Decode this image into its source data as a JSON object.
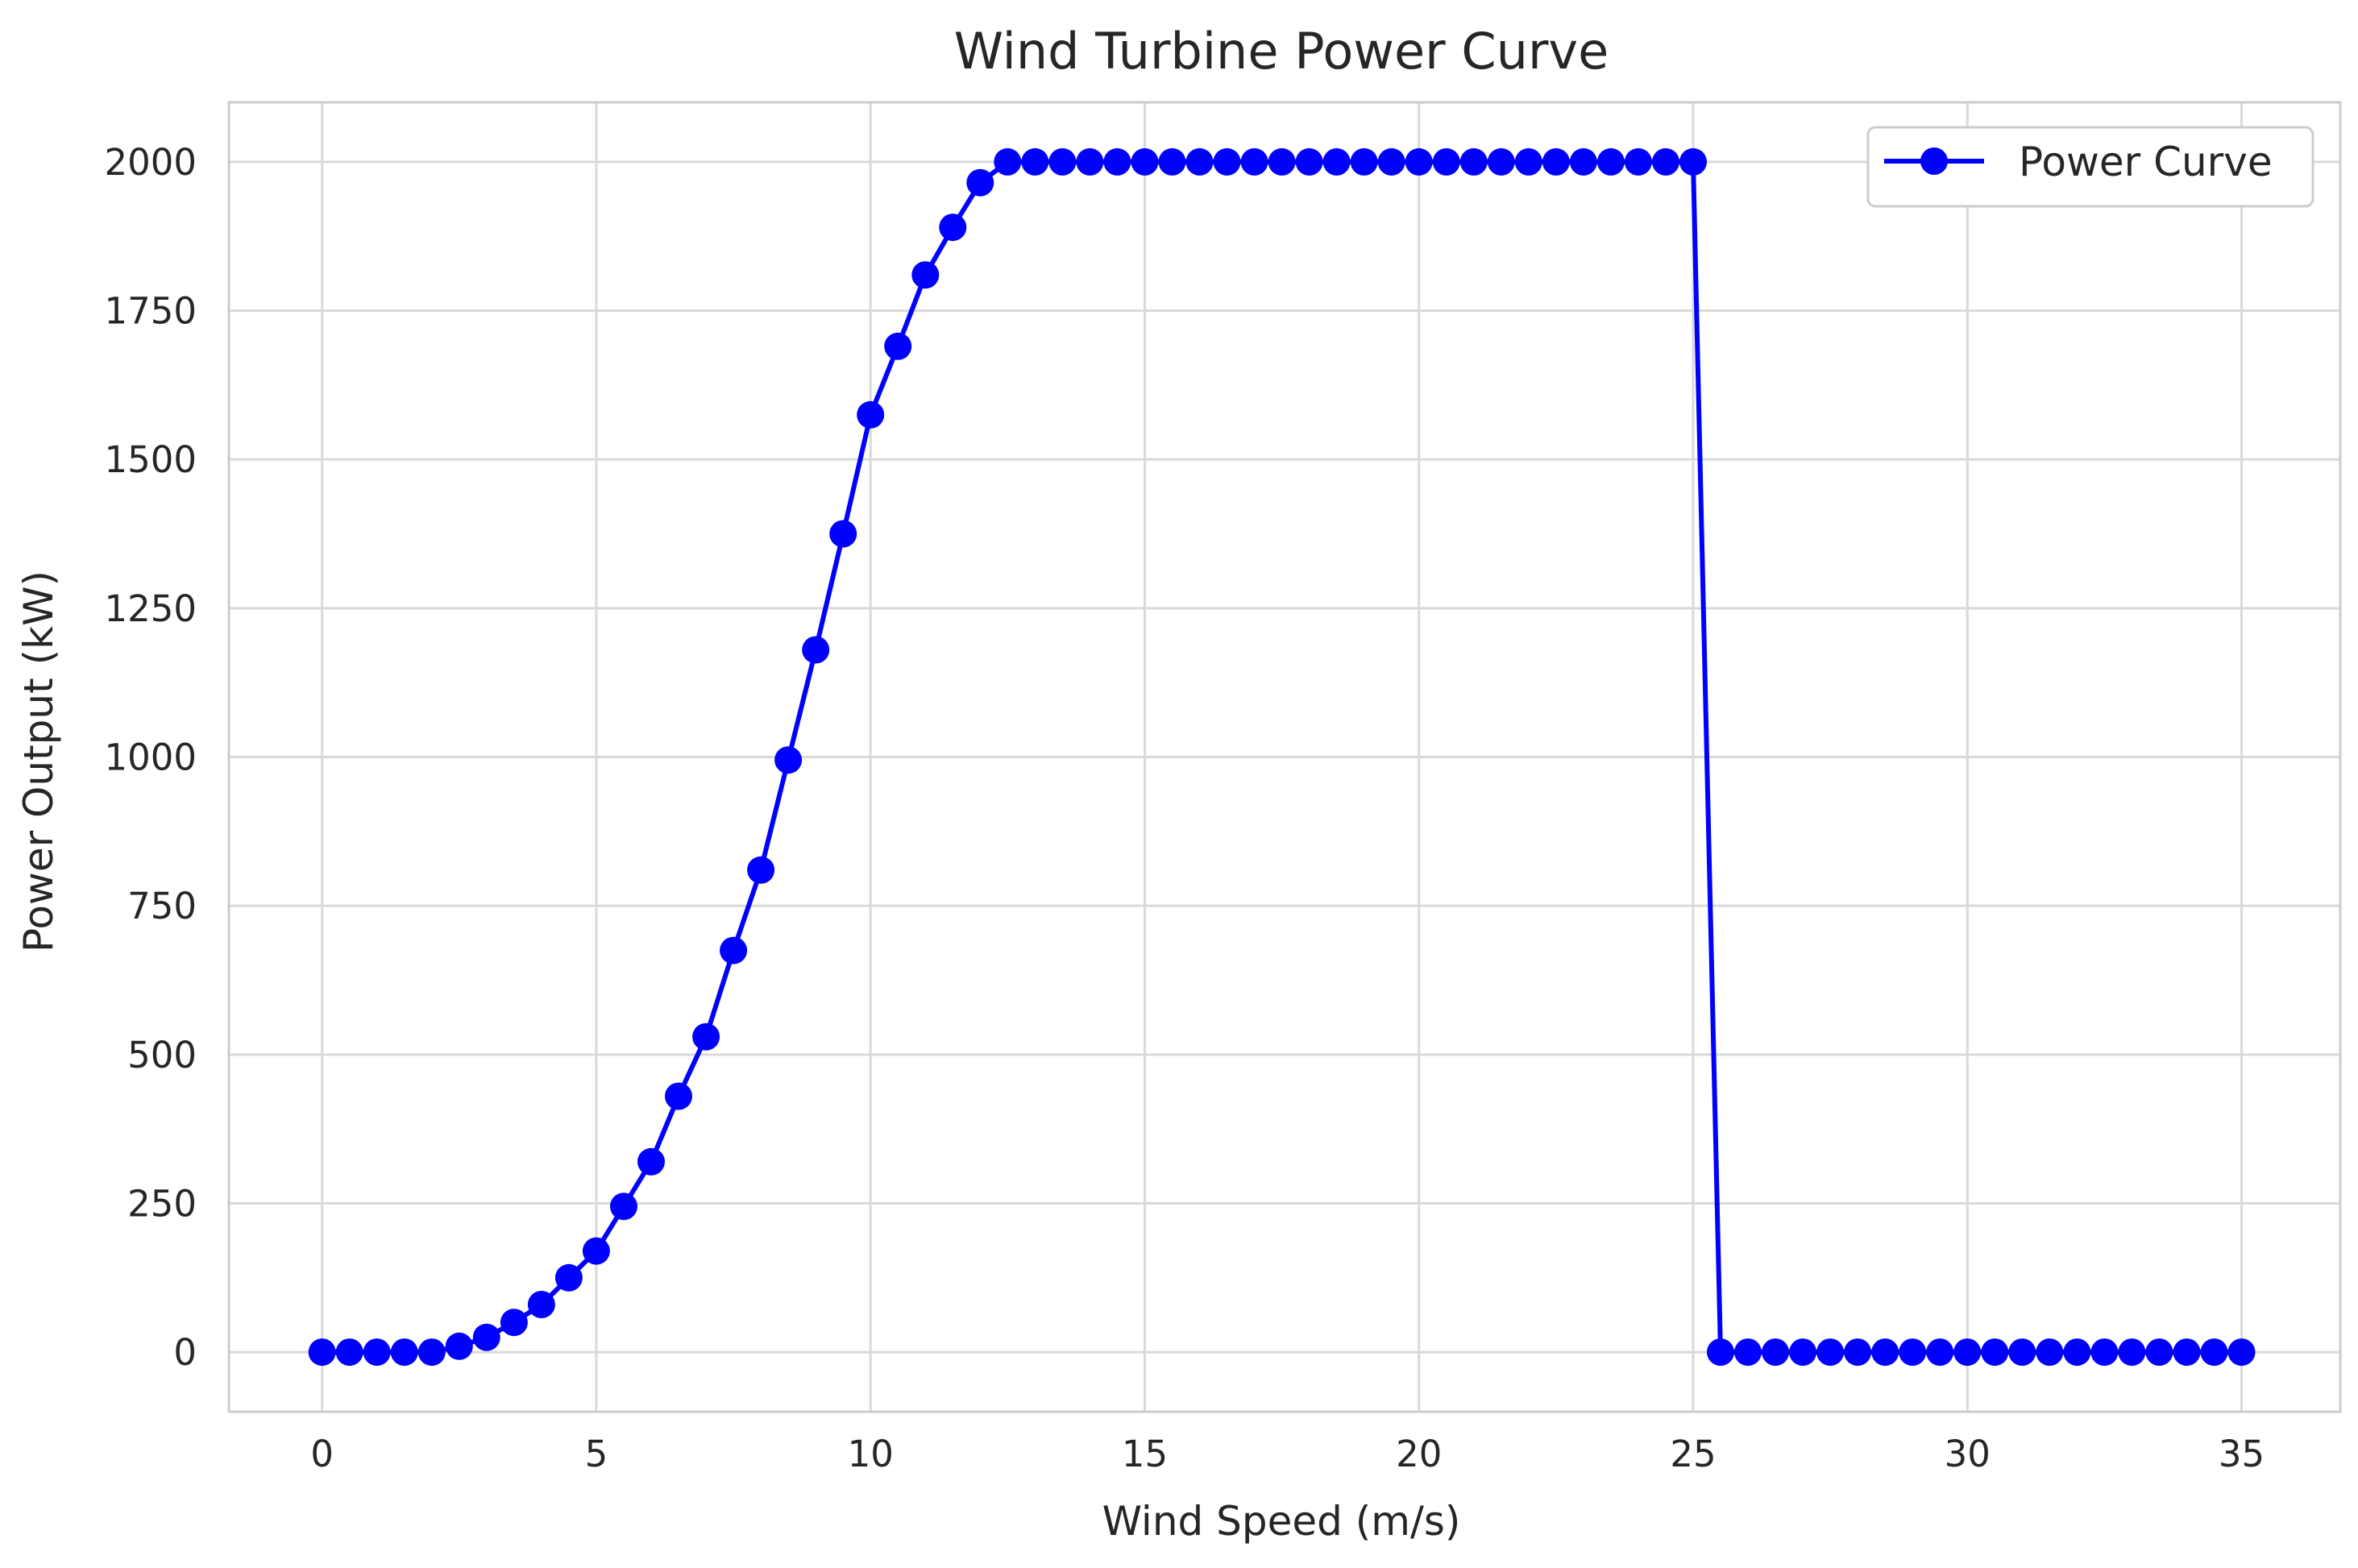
{
  "chart_data": {
    "type": "line",
    "title": "Wind Turbine Power Curve",
    "xlabel": "Wind Speed (m/s)",
    "ylabel": "Power Output (kW)",
    "xlim": [
      -1.7,
      36.8
    ],
    "ylim": [
      -100,
      2100
    ],
    "xticks": [
      "0",
      "5",
      "10",
      "15",
      "20",
      "25",
      "30",
      "35"
    ],
    "yticks": [
      "0",
      "250",
      "500",
      "750",
      "1000",
      "1250",
      "1500",
      "1750",
      "2000"
    ],
    "grid": true,
    "legend_position": "top-right",
    "series": [
      {
        "name": "Power Curve",
        "color": "#0000ff",
        "marker": "circle",
        "x": [
          0,
          0.5,
          1,
          1.5,
          2,
          2.5,
          3,
          3.5,
          4,
          4.5,
          5,
          5.5,
          6,
          6.5,
          7,
          7.5,
          8,
          8.5,
          9,
          9.5,
          10,
          10.5,
          11,
          11.5,
          12,
          12.5,
          13,
          13.5,
          14,
          14.5,
          15,
          15.5,
          16,
          16.5,
          17,
          17.5,
          18,
          18.5,
          19,
          19.5,
          20,
          20.5,
          21,
          21.5,
          22,
          22.5,
          23,
          23.5,
          24,
          24.5,
          25,
          25.5,
          26,
          26.5,
          27,
          27.5,
          28,
          28.5,
          29,
          29.5,
          30,
          30.5,
          31,
          31.5,
          32,
          32.5,
          33,
          33.5,
          34,
          34.5,
          35
        ],
        "y": [
          0,
          0,
          0,
          0,
          0,
          10,
          25,
          50,
          80,
          125,
          170,
          245,
          320,
          430,
          530,
          675,
          810,
          995,
          1180,
          1375,
          1575,
          1690,
          1810,
          1890,
          1965,
          2000,
          2000,
          2000,
          2000,
          2000,
          2000,
          2000,
          2000,
          2000,
          2000,
          2000,
          2000,
          2000,
          2000,
          2000,
          2000,
          2000,
          2000,
          2000,
          2000,
          2000,
          2000,
          2000,
          2000,
          2000,
          2000,
          0,
          0,
          0,
          0,
          0,
          0,
          0,
          0,
          0,
          0,
          0,
          0,
          0,
          0,
          0,
          0,
          0,
          0,
          0,
          0
        ]
      }
    ]
  }
}
